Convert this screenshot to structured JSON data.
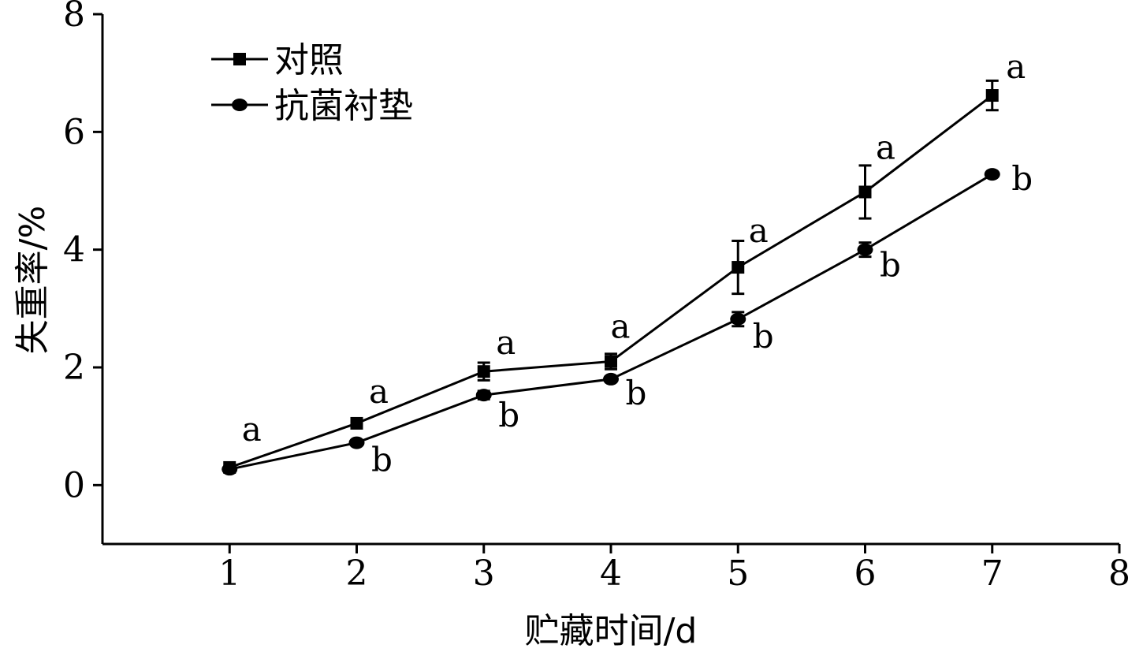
{
  "chart_data": {
    "type": "line",
    "title": "",
    "xlabel": "贮藏时间/d",
    "ylabel": "失重率/%",
    "xlim": [
      0,
      8
    ],
    "ylim": [
      -1,
      8
    ],
    "x_ticks": [
      1,
      2,
      3,
      4,
      5,
      6,
      7,
      8
    ],
    "y_ticks": [
      0,
      2,
      4,
      6,
      8
    ],
    "grid": false,
    "legend_position": "top-left",
    "x": [
      1,
      2,
      3,
      4,
      5,
      6,
      7
    ],
    "series": [
      {
        "name": "对照",
        "marker": "square",
        "values": [
          0.3,
          1.05,
          1.93,
          2.1,
          3.7,
          4.98,
          6.62
        ],
        "errors": [
          0.05,
          0.06,
          0.15,
          0.13,
          0.45,
          0.45,
          0.25
        ],
        "labels": [
          "a",
          "a",
          "a",
          "a",
          "a",
          "a",
          "a"
        ]
      },
      {
        "name": "抗菌衬垫",
        "marker": "circle",
        "values": [
          0.27,
          0.72,
          1.53,
          1.8,
          2.82,
          4.0,
          5.28
        ],
        "errors": [
          0.04,
          0.05,
          0.07,
          0.05,
          0.12,
          0.12,
          0.05
        ],
        "labels": [
          "",
          "b",
          "b",
          "b",
          "b",
          "b",
          "b"
        ]
      }
    ],
    "line_color": "#000000"
  }
}
